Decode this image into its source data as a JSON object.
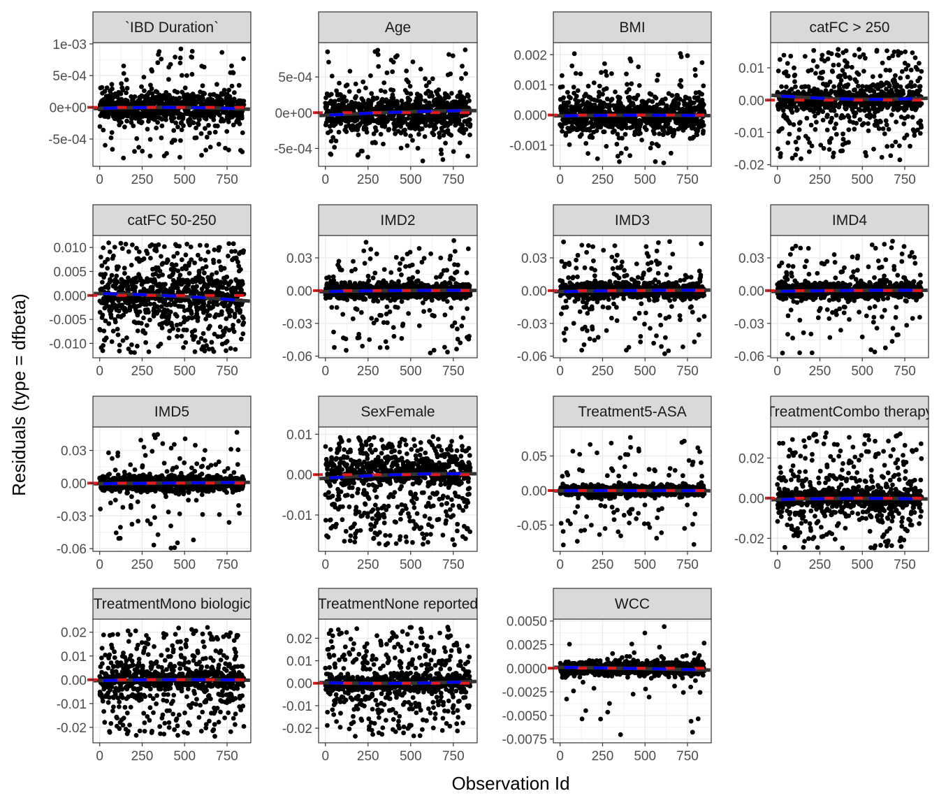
{
  "figure": {
    "xlabel": "Observation Id",
    "ylabel": "Residuals (type = dfbeta)"
  },
  "colors": {
    "point": "#000000",
    "panel_border": "#333333",
    "strip_fill": "#d9d9d9",
    "grid": "#ebebeb",
    "smooth_line": "#333333",
    "zero_line": "#e41a1c",
    "trend_line": "#0000ff",
    "tick_text": "#4d4d4d"
  },
  "chart_data": {
    "type": "scatter",
    "layout": "facet-wrap-4-columns",
    "grid": true,
    "legend": "none",
    "x_ticks": [
      0,
      250,
      500,
      750
    ],
    "xlim": [
      -40,
      890
    ],
    "point_count": 850,
    "panels": [
      {
        "title": "`IBD Duration`",
        "ylim": [
          -0.00093,
          0.00102
        ],
        "y_ticks": [
          -0.0005,
          0,
          0.0005,
          0.001
        ],
        "y_tick_labels": [
          "-5e-04",
          "0e+00",
          "5e-04",
          "1e-03"
        ],
        "core_sd": 0.00012,
        "outlier_max": 0.00095,
        "outlier_min": -0.00085,
        "outlier_frac": 0.12,
        "trend": [
          -2e-05,
          2e-05,
          -3e-05
        ]
      },
      {
        "title": "Age",
        "ylim": [
          -0.00075,
          0.00098
        ],
        "y_ticks": [
          -0.0005,
          0,
          0.0005
        ],
        "y_tick_labels": [
          "-5e-04",
          "0e+00",
          "5e-04"
        ],
        "core_sd": 0.00013,
        "outlier_max": 0.00088,
        "outlier_min": -0.00068,
        "outlier_frac": 0.12,
        "trend": [
          -4e-05,
          2e-05,
          3e-05
        ]
      },
      {
        "title": "BMI",
        "ylim": [
          -0.0017,
          0.0024
        ],
        "y_ticks": [
          -0.001,
          0,
          0.001,
          0.002
        ],
        "y_tick_labels": [
          "-0.001",
          "0.000",
          "0.001",
          "0.002"
        ],
        "core_sd": 0.0003,
        "outlier_max": 0.0022,
        "outlier_min": -0.0016,
        "outlier_frac": 0.1,
        "trend": [
          -3e-05,
          1e-05,
          -2e-05
        ]
      },
      {
        "title": "catFC > 250",
        "ylim": [
          -0.0205,
          0.0178
        ],
        "y_ticks": [
          -0.02,
          -0.01,
          0,
          0.01
        ],
        "y_tick_labels": [
          "-0.02",
          "-0.01",
          "0.00",
          "0.01"
        ],
        "core_sd": 0.0018,
        "outlier_max": 0.0165,
        "outlier_min": -0.0185,
        "outlier_frac": 0.3,
        "trend": [
          0.0015,
          -0.0004,
          0.0006
        ]
      },
      {
        "title": "catFC 50-250",
        "ylim": [
          -0.013,
          0.0125
        ],
        "y_ticks": [
          -0.01,
          -0.005,
          0,
          0.005,
          0.01
        ],
        "y_tick_labels": [
          "-0.010",
          "-0.005",
          "0.000",
          "0.005",
          "0.010"
        ],
        "core_sd": 0.0018,
        "outlier_max": 0.011,
        "outlier_min": -0.012,
        "outlier_frac": 0.45,
        "trend": [
          0.0004,
          0.0002,
          -0.0012
        ]
      },
      {
        "title": "IMD2",
        "ylim": [
          -0.0615,
          0.0505
        ],
        "y_ticks": [
          -0.06,
          -0.03,
          0,
          0.03
        ],
        "y_tick_labels": [
          "-0.06",
          "-0.03",
          "0.00",
          "0.03"
        ],
        "core_sd": 0.004,
        "outlier_max": 0.046,
        "outlier_min": -0.058,
        "outlier_frac": 0.14,
        "trend": [
          -0.001,
          0.0005,
          0.0002
        ]
      },
      {
        "title": "IMD3",
        "ylim": [
          -0.0615,
          0.0505
        ],
        "y_ticks": [
          -0.06,
          -0.03,
          0,
          0.03
        ],
        "y_tick_labels": [
          "-0.06",
          "-0.03",
          "0.00",
          "0.03"
        ],
        "core_sd": 0.004,
        "outlier_max": 0.046,
        "outlier_min": -0.058,
        "outlier_frac": 0.14,
        "trend": [
          -0.001,
          0.0004,
          0.0005
        ]
      },
      {
        "title": "IMD4",
        "ylim": [
          -0.0615,
          0.0505
        ],
        "y_ticks": [
          -0.06,
          -0.03,
          0,
          0.03
        ],
        "y_tick_labels": [
          "-0.06",
          "-0.03",
          "0.00",
          "0.03"
        ],
        "core_sd": 0.004,
        "outlier_max": 0.046,
        "outlier_min": -0.058,
        "outlier_frac": 0.14,
        "trend": [
          -0.0008,
          0.0006,
          0.0003
        ]
      },
      {
        "title": "IMD5",
        "ylim": [
          -0.0625,
          0.0515
        ],
        "y_ticks": [
          -0.06,
          -0.03,
          0,
          0.03
        ],
        "y_tick_labels": [
          "-0.06",
          "-0.03",
          "0.00",
          "0.03"
        ],
        "core_sd": 0.004,
        "outlier_max": 0.048,
        "outlier_min": -0.06,
        "outlier_frac": 0.1,
        "trend": [
          -0.0006,
          0.0002,
          0.0008
        ]
      },
      {
        "title": "SexFemale",
        "ylim": [
          -0.019,
          0.0118
        ],
        "y_ticks": [
          -0.01,
          0,
          0.01
        ],
        "y_tick_labels": [
          "-0.01",
          "0.00",
          "0.01"
        ],
        "core_sd": 0.0015,
        "outlier_max": 0.0095,
        "outlier_min": -0.0175,
        "outlier_frac": 0.45,
        "trend": [
          -0.001,
          0.0004,
          0.0002
        ]
      },
      {
        "title": "Treatment5-ASA",
        "ylim": [
          -0.088,
          0.092
        ],
        "y_ticks": [
          -0.05,
          0,
          0.05
        ],
        "y_tick_labels": [
          "-0.05",
          "0.00",
          "0.05"
        ],
        "core_sd": 0.004,
        "outlier_max": 0.082,
        "outlier_min": -0.08,
        "outlier_frac": 0.1,
        "trend": [
          -0.0005,
          0.0003,
          -0.0004
        ]
      },
      {
        "title": "TreatmentCombo therapy",
        "ylim": [
          -0.0265,
          0.0355
        ],
        "y_ticks": [
          -0.02,
          0,
          0.02
        ],
        "y_tick_labels": [
          "-0.02",
          "0.00",
          "0.02"
        ],
        "core_sd": 0.003,
        "outlier_max": 0.033,
        "outlier_min": -0.025,
        "outlier_frac": 0.28,
        "trend": [
          -0.0008,
          0.0004,
          -0.0004
        ]
      },
      {
        "title": "TreatmentMono biologic",
        "ylim": [
          -0.0265,
          0.0255
        ],
        "y_ticks": [
          -0.02,
          -0.01,
          0,
          0.01,
          0.02
        ],
        "y_tick_labels": [
          "-0.02",
          "-0.01",
          "0.00",
          "0.01",
          "0.02"
        ],
        "core_sd": 0.0025,
        "outlier_max": 0.022,
        "outlier_min": -0.024,
        "outlier_frac": 0.35,
        "trend": [
          -0.0004,
          0.0004,
          -0.0002
        ]
      },
      {
        "title": "TreatmentNone reported",
        "ylim": [
          -0.0265,
          0.0285
        ],
        "y_ticks": [
          -0.02,
          -0.01,
          0,
          0.01,
          0.02
        ],
        "y_tick_labels": [
          "-0.02",
          "-0.01",
          "0.00",
          "0.01",
          "0.02"
        ],
        "core_sd": 0.0025,
        "outlier_max": 0.025,
        "outlier_min": -0.024,
        "outlier_frac": 0.35,
        "trend": [
          0.0003,
          -0.0006,
          0.0008
        ]
      },
      {
        "title": "WCC",
        "ylim": [
          -0.0079,
          0.0052
        ],
        "y_ticks": [
          -0.0075,
          -0.005,
          -0.0025,
          0,
          0.0025,
          0.005
        ],
        "y_tick_labels": [
          "-0.0075",
          "-0.0050",
          "-0.0025",
          "0.0000",
          "0.0025",
          "0.0050"
        ],
        "core_sd": 0.0004,
        "outlier_max": 0.0048,
        "outlier_min": -0.0074,
        "outlier_frac": 0.04,
        "trend": [
          0.0001,
          0.0,
          -0.0002
        ]
      }
    ]
  }
}
